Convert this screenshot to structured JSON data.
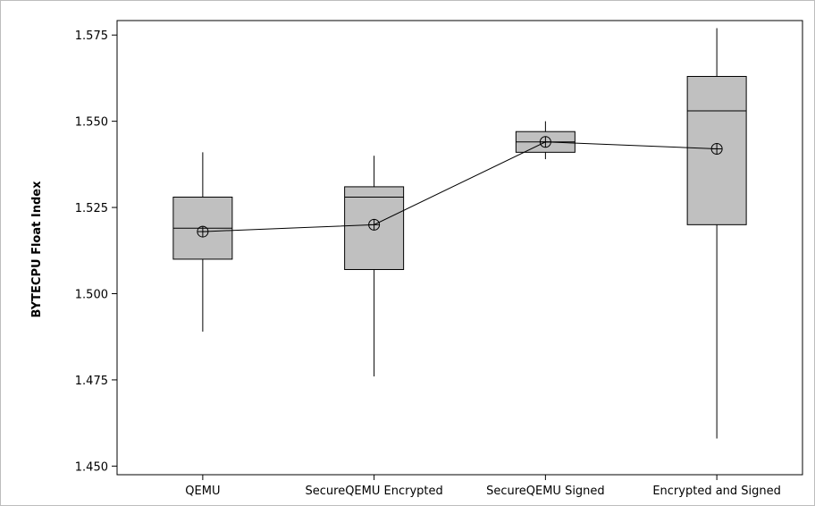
{
  "chart_data": {
    "type": "boxplot",
    "ylabel": "BYTECPU Float Index",
    "xlabel": "",
    "ylim": [
      1.4475,
      1.5792
    ],
    "yticks": [
      1.45,
      1.475,
      1.5,
      1.525,
      1.55,
      1.575
    ],
    "ytick_labels": [
      "1.450",
      "1.475",
      "1.500",
      "1.525",
      "1.550",
      "1.575"
    ],
    "categories": [
      "QEMU",
      "SecureQEMU Encrypted",
      "SecureQEMU Signed",
      "Encrypted and Signed"
    ],
    "boxes": [
      {
        "whisker_low": 1.489,
        "q1": 1.51,
        "median": 1.519,
        "q3": 1.528,
        "whisker_high": 1.541,
        "mean": 1.518
      },
      {
        "whisker_low": 1.476,
        "q1": 1.507,
        "median": 1.528,
        "q3": 1.531,
        "whisker_high": 1.54,
        "mean": 1.52
      },
      {
        "whisker_low": 1.539,
        "q1": 1.541,
        "median": 1.544,
        "q3": 1.547,
        "whisker_high": 1.55,
        "mean": 1.544
      },
      {
        "whisker_low": 1.458,
        "q1": 1.52,
        "median": 1.553,
        "q3": 1.563,
        "whisker_high": 1.577,
        "mean": 1.542
      }
    ],
    "mean_line_connected": true,
    "grid": false,
    "colors": {
      "box_fill": "#c0c0c0",
      "stroke": "#000000",
      "frame": "#bdbdbd"
    }
  }
}
